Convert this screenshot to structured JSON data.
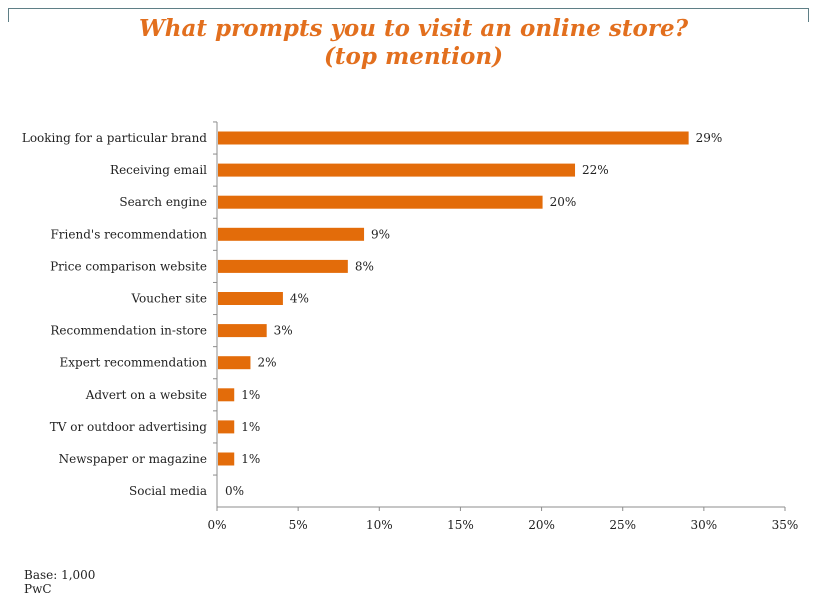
{
  "chart_data": {
    "type": "bar",
    "orientation": "horizontal",
    "title": "What prompts you to visit an online store?",
    "subtitle": "(top mention)",
    "categories": [
      "Looking for a particular brand",
      "Receiving email",
      "Search engine",
      "Friend's recommendation",
      "Price comparison website",
      "Voucher site",
      "Recommendation in-store",
      "Expert recommendation",
      "Advert on a website",
      "TV or outdoor advertising",
      "Newspaper or magazine",
      "Social media"
    ],
    "values": [
      29,
      22,
      20,
      9,
      8,
      4,
      3,
      2,
      1,
      1,
      1,
      0
    ],
    "value_labels": [
      "29%",
      "22%",
      "20%",
      "9%",
      "8%",
      "4%",
      "3%",
      "2%",
      "1%",
      "1%",
      "1%",
      "0%"
    ],
    "xlim": [
      0,
      35
    ],
    "x_ticks": [
      "0%",
      "5%",
      "10%",
      "15%",
      "20%",
      "25%",
      "30%",
      "35%"
    ],
    "bar_color": "#e36c0a",
    "grid": false,
    "legend": "none"
  },
  "footnotes": {
    "base": "Base: 1,000",
    "source": "PwC"
  }
}
